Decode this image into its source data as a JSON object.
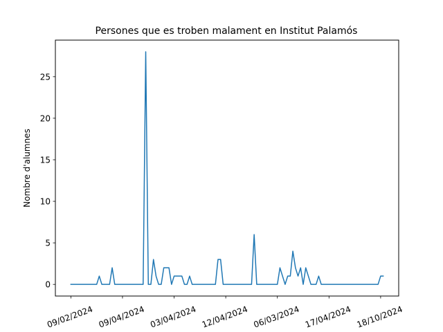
{
  "chart_data": {
    "type": "line",
    "title": "Persones que es troben malament en Institut Palamós",
    "xlabel": "",
    "ylabel": "Nombre d'alumnes",
    "x_tick_labels": [
      "09/02/2024",
      "09/04/2024",
      "03/04/2024",
      "12/04/2024",
      "06/03/2024",
      "17/04/2024",
      "18/10/2024"
    ],
    "x_tick_positions": [
      0,
      20,
      40,
      60,
      80,
      100,
      120
    ],
    "y_ticks": [
      0,
      5,
      10,
      15,
      20,
      25
    ],
    "xlim": [
      -6,
      127
    ],
    "ylim": [
      -1.4,
      29.4
    ],
    "grid": false,
    "series": [
      {
        "color": "#1f77b4",
        "x": [
          0,
          1,
          2,
          3,
          4,
          5,
          6,
          7,
          8,
          9,
          10,
          11,
          12,
          13,
          14,
          15,
          16,
          17,
          18,
          19,
          20,
          21,
          22,
          23,
          24,
          25,
          26,
          27,
          28,
          29,
          30,
          31,
          32,
          33,
          34,
          35,
          36,
          37,
          38,
          39,
          40,
          41,
          42,
          43,
          44,
          45,
          46,
          47,
          48,
          49,
          50,
          51,
          52,
          53,
          54,
          55,
          56,
          57,
          58,
          59,
          60,
          61,
          62,
          63,
          64,
          65,
          66,
          67,
          68,
          69,
          70,
          71,
          72,
          73,
          74,
          75,
          76,
          77,
          78,
          79,
          80,
          81,
          82,
          83,
          84,
          85,
          86,
          87,
          88,
          89,
          90,
          91,
          92,
          93,
          94,
          95,
          96,
          97,
          98,
          99,
          100,
          101,
          102,
          103,
          104,
          105,
          106,
          107,
          108,
          109,
          110,
          111,
          112,
          113,
          114,
          115,
          116,
          117,
          118,
          119,
          120,
          121
        ],
        "values": [
          0,
          0,
          0,
          0,
          0,
          0,
          0,
          0,
          0,
          0,
          0,
          1,
          0,
          0,
          0,
          0,
          2,
          0,
          0,
          0,
          0,
          0,
          0,
          0,
          0,
          0,
          0,
          0,
          0,
          28,
          0,
          0,
          3,
          1,
          0,
          0,
          2,
          2,
          2,
          0,
          1,
          1,
          1,
          1,
          0,
          0,
          1,
          0,
          0,
          0,
          0,
          0,
          0,
          0,
          0,
          0,
          0,
          3,
          3,
          0,
          0,
          0,
          0,
          0,
          0,
          0,
          0,
          0,
          0,
          0,
          0,
          6,
          0,
          0,
          0,
          0,
          0,
          0,
          0,
          0,
          0,
          2,
          1,
          0,
          1,
          1,
          4,
          2,
          1,
          2,
          0,
          2,
          1,
          0,
          0,
          0,
          1,
          0,
          0,
          0,
          0,
          0,
          0,
          0,
          0,
          0,
          0,
          0,
          0,
          0,
          0,
          0,
          0,
          0,
          0,
          0,
          0,
          0,
          0,
          0,
          1,
          1
        ]
      }
    ]
  }
}
